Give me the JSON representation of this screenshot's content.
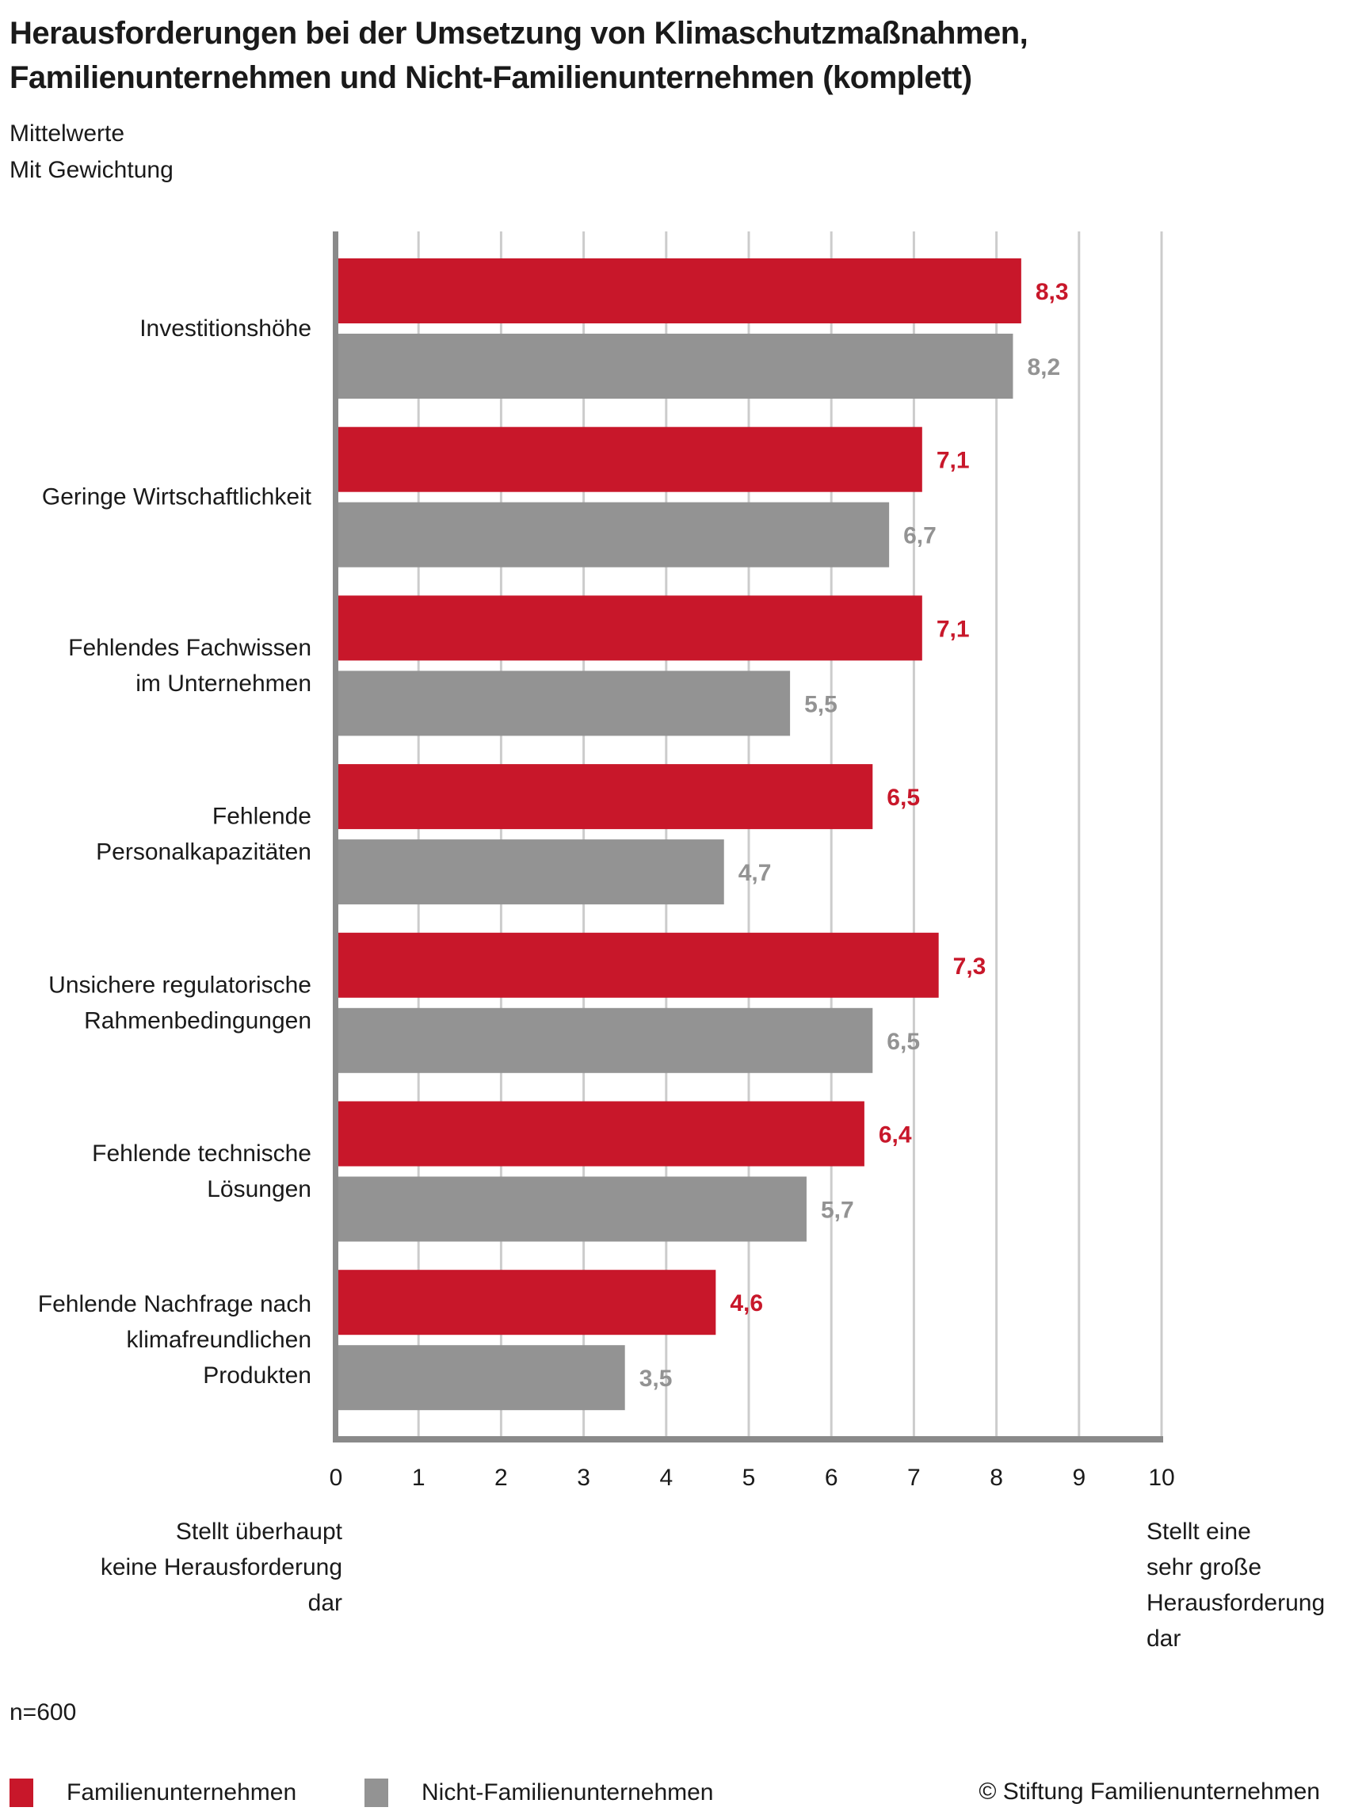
{
  "title_lines": [
    "Herausforderungen bei der Umsetzung von Klimaschutzmaßnahmen,",
    "Familienunternehmen und Nicht-Familienunternehmen (komplett)"
  ],
  "subtitle_lines": [
    "Mittelwerte",
    "Mit Gewichtung"
  ],
  "note": "n=600",
  "copyright": "© Stiftung Familienunternehmen",
  "colors": {
    "familien": "#c8172a",
    "nicht_familien": "#939393",
    "grid": "#cccccc",
    "axis": "#8a8a8a"
  },
  "chart_data": {
    "type": "bar",
    "orientation": "horizontal",
    "categories": [
      [
        "Investitionshöhe"
      ],
      [
        "Geringe Wirtschaftlichkeit"
      ],
      [
        "Fehlendes Fachwissen",
        "im Unternehmen"
      ],
      [
        "Fehlende",
        "Personalkapazitäten"
      ],
      [
        "Unsichere regulatorische",
        "Rahmenbedingungen"
      ],
      [
        "Fehlende technische",
        "Lösungen"
      ],
      [
        "Fehlende Nachfrage nach",
        "klimafreundlichen",
        "Produkten"
      ]
    ],
    "series": [
      {
        "name": "Familienunternehmen",
        "values": [
          8.3,
          7.1,
          7.1,
          6.5,
          7.3,
          6.4,
          4.6
        ],
        "labels": [
          "8,3",
          "7,1",
          "7,1",
          "6,5",
          "7,3",
          "6,4",
          "4,6"
        ]
      },
      {
        "name": "Nicht-Familienunternehmen",
        "values": [
          8.2,
          6.7,
          5.5,
          4.7,
          6.5,
          5.7,
          3.5
        ],
        "labels": [
          "8,2",
          "6,7",
          "5,5",
          "4,7",
          "6,5",
          "5,7",
          "3,5"
        ]
      }
    ],
    "xlim": [
      0,
      10
    ],
    "xticks": [
      "0",
      "1",
      "2",
      "3",
      "4",
      "5",
      "6",
      "7",
      "8",
      "9",
      "10"
    ],
    "x_low_label": [
      "Stellt überhaupt",
      "keine Herausforderung",
      "dar"
    ],
    "x_high_label": [
      "Stellt eine",
      "sehr große",
      "Herausforderung",
      "dar"
    ],
    "grid": true,
    "legend": "bottom-left"
  }
}
